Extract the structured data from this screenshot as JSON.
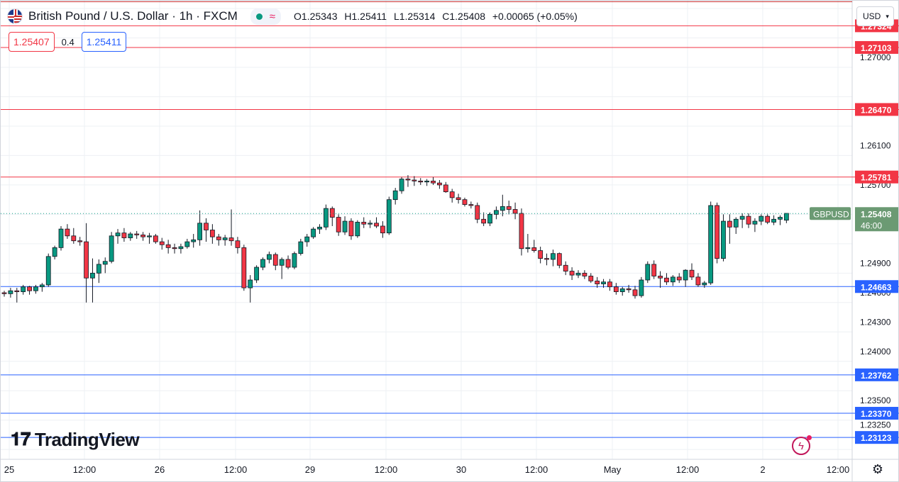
{
  "header": {
    "title": "British Pound / U.S. Dollar · 1h · FXCM",
    "open": "O1.25343",
    "high": "H1.25411",
    "low": "L1.25314",
    "close": "C1.25408",
    "change": "+0.00065 (+0.05%)"
  },
  "trade": {
    "sell": "1.25407",
    "spread": "0.4",
    "buy": "1.25411"
  },
  "currency_button": "USD",
  "branding": "TradingView",
  "icons": [
    "uk-us-flag-icon",
    "status-dot-icon",
    "wave-icon",
    "chevron-down-icon",
    "lightning-icon",
    "settings-gear-icon"
  ],
  "colors": {
    "up": "#089981",
    "down": "#f23645",
    "resistance": "#f23645",
    "support": "#2962ff",
    "last": "#6b9a73"
  },
  "chart_data": {
    "type": "candlestick",
    "title": "British Pound / U.S. Dollar · 1h · FXCM",
    "symbol": "GBPUSD",
    "ylim": [
      1.229,
      1.2758
    ],
    "x_ticks": [
      "25",
      "12:00",
      "26",
      "12:00",
      "29",
      "12:00",
      "30",
      "12:00",
      "May",
      "12:00",
      "2",
      "12:00"
    ],
    "y_ticks": [
      "1.27000",
      "1.26100",
      "1.25700",
      "1.24900",
      "1.24600",
      "1.24300",
      "1.24000",
      "1.23500",
      "1.23250"
    ],
    "resistance_levels": [
      "1.27324",
      "1.27103",
      "1.26470",
      "1.25781"
    ],
    "support_levels": [
      "1.24663",
      "1.23762",
      "1.23370",
      "1.23123"
    ],
    "top_line": 1.2757,
    "last_price": {
      "label": "GBPUSD",
      "value": "1.25408",
      "countdown": "46:00"
    },
    "candles": [
      [
        1.246,
        1.2462,
        1.2456,
        1.2459
      ],
      [
        1.2459,
        1.2465,
        1.2455,
        1.2462
      ],
      [
        1.2462,
        1.2465,
        1.245,
        1.2461
      ],
      [
        1.2461,
        1.2468,
        1.2458,
        1.2466
      ],
      [
        1.2466,
        1.2467,
        1.2458,
        1.2462
      ],
      [
        1.2462,
        1.2468,
        1.2459,
        1.2466
      ],
      [
        1.2466,
        1.247,
        1.2461,
        1.2468
      ],
      [
        1.2468,
        1.25,
        1.2466,
        1.2497
      ],
      [
        1.2497,
        1.2508,
        1.2494,
        1.2506
      ],
      [
        1.2506,
        1.2528,
        1.2503,
        1.2525
      ],
      [
        1.2525,
        1.253,
        1.2515,
        1.2518
      ],
      [
        1.2518,
        1.2526,
        1.251,
        1.2513
      ],
      [
        1.2513,
        1.2517,
        1.2508,
        1.2512
      ],
      [
        1.2512,
        1.2531,
        1.245,
        1.2475
      ],
      [
        1.2475,
        1.2495,
        1.245,
        1.248
      ],
      [
        1.248,
        1.2494,
        1.247,
        1.2489
      ],
      [
        1.2489,
        1.2496,
        1.248,
        1.2492
      ],
      [
        1.2492,
        1.2522,
        1.249,
        1.2518
      ],
      [
        1.2518,
        1.2525,
        1.251,
        1.2521
      ],
      [
        1.2521,
        1.2526,
        1.2512,
        1.2516
      ],
      [
        1.2516,
        1.2522,
        1.2513,
        1.252
      ],
      [
        1.252,
        1.2523,
        1.2515,
        1.2519
      ],
      [
        1.2519,
        1.2522,
        1.2513,
        1.2517
      ],
      [
        1.2517,
        1.2521,
        1.251,
        1.2518
      ],
      [
        1.2518,
        1.252,
        1.251,
        1.2512
      ],
      [
        1.2512,
        1.2516,
        1.2504,
        1.2509
      ],
      [
        1.2509,
        1.2514,
        1.25,
        1.2506
      ],
      [
        1.2506,
        1.251,
        1.25,
        1.2505
      ],
      [
        1.2505,
        1.251,
        1.25,
        1.2507
      ],
      [
        1.2507,
        1.2515,
        1.2505,
        1.2512
      ],
      [
        1.2512,
        1.252,
        1.2506,
        1.2514
      ],
      [
        1.2514,
        1.2544,
        1.2508,
        1.2531
      ],
      [
        1.2531,
        1.2536,
        1.2512,
        1.2524
      ],
      [
        1.2524,
        1.253,
        1.251,
        1.2517
      ],
      [
        1.2517,
        1.252,
        1.2508,
        1.2514
      ],
      [
        1.2514,
        1.2519,
        1.2508,
        1.2516
      ],
      [
        1.2516,
        1.2545,
        1.2508,
        1.2513
      ],
      [
        1.2513,
        1.2517,
        1.25,
        1.2506
      ],
      [
        1.2506,
        1.2509,
        1.2462,
        1.2465
      ],
      [
        1.2465,
        1.2478,
        1.245,
        1.2473
      ],
      [
        1.2473,
        1.2488,
        1.247,
        1.2486
      ],
      [
        1.2486,
        1.2496,
        1.2483,
        1.2494
      ],
      [
        1.2494,
        1.2502,
        1.249,
        1.2499
      ],
      [
        1.2499,
        1.2501,
        1.2483,
        1.2488
      ],
      [
        1.2488,
        1.2496,
        1.2474,
        1.2494
      ],
      [
        1.2494,
        1.2498,
        1.2484,
        1.2486
      ],
      [
        1.2486,
        1.2502,
        1.2484,
        1.25
      ],
      [
        1.25,
        1.2515,
        1.2498,
        1.2512
      ],
      [
        1.2512,
        1.252,
        1.2507,
        1.2517
      ],
      [
        1.2517,
        1.2527,
        1.2515,
        1.2525
      ],
      [
        1.2525,
        1.253,
        1.252,
        1.2527
      ],
      [
        1.2527,
        1.255,
        1.2524,
        1.2546
      ],
      [
        1.2546,
        1.2548,
        1.2528,
        1.2537
      ],
      [
        1.2537,
        1.254,
        1.2518,
        1.2522
      ],
      [
        1.2522,
        1.2538,
        1.2519,
        1.2533
      ],
      [
        1.2533,
        1.2536,
        1.2514,
        1.2518
      ],
      [
        1.2518,
        1.2534,
        1.2516,
        1.2532
      ],
      [
        1.2532,
        1.2537,
        1.2526,
        1.253
      ],
      [
        1.253,
        1.2534,
        1.2526,
        1.2531
      ],
      [
        1.2531,
        1.2537,
        1.2526,
        1.2528
      ],
      [
        1.2528,
        1.2533,
        1.2516,
        1.2521
      ],
      [
        1.2521,
        1.2558,
        1.2519,
        1.2555
      ],
      [
        1.2555,
        1.2567,
        1.255,
        1.2564
      ],
      [
        1.2564,
        1.2578,
        1.2561,
        1.2576
      ],
      [
        1.2576,
        1.258,
        1.2568,
        1.2575
      ],
      [
        1.2575,
        1.2579,
        1.2569,
        1.2574
      ],
      [
        1.2574,
        1.2577,
        1.257,
        1.2573
      ],
      [
        1.2573,
        1.2576,
        1.2569,
        1.2574
      ],
      [
        1.2574,
        1.2578,
        1.257,
        1.2572
      ],
      [
        1.2572,
        1.2575,
        1.2566,
        1.257
      ],
      [
        1.257,
        1.2573,
        1.2562,
        1.2563
      ],
      [
        1.2563,
        1.2566,
        1.2552,
        1.2557
      ],
      [
        1.2557,
        1.2561,
        1.2551,
        1.2555
      ],
      [
        1.2555,
        1.2557,
        1.2548,
        1.255
      ],
      [
        1.255,
        1.2553,
        1.2546,
        1.2549
      ],
      [
        1.2549,
        1.2552,
        1.2531,
        1.2535
      ],
      [
        1.2535,
        1.2542,
        1.2528,
        1.2531
      ],
      [
        1.2531,
        1.2542,
        1.2528,
        1.254
      ],
      [
        1.254,
        1.2548,
        1.2535,
        1.2544
      ],
      [
        1.2544,
        1.256,
        1.2538,
        1.2548
      ],
      [
        1.2548,
        1.2554,
        1.254,
        1.2545
      ],
      [
        1.2545,
        1.2552,
        1.2535,
        1.2541
      ],
      [
        1.2541,
        1.2546,
        1.2498,
        1.2505
      ],
      [
        1.2505,
        1.252,
        1.2501,
        1.2506
      ],
      [
        1.2506,
        1.2514,
        1.2501,
        1.2503
      ],
      [
        1.2503,
        1.2507,
        1.249,
        1.2495
      ],
      [
        1.2495,
        1.25,
        1.2488,
        1.2494
      ],
      [
        1.2494,
        1.2504,
        1.2487,
        1.25
      ],
      [
        1.25,
        1.2501,
        1.2485,
        1.2488
      ],
      [
        1.2488,
        1.2492,
        1.2478,
        1.2482
      ],
      [
        1.2482,
        1.2486,
        1.2473,
        1.2478
      ],
      [
        1.2478,
        1.2483,
        1.2475,
        1.248
      ],
      [
        1.248,
        1.2483,
        1.2474,
        1.2477
      ],
      [
        1.2477,
        1.248,
        1.247,
        1.2472
      ],
      [
        1.2472,
        1.2476,
        1.2465,
        1.2469
      ],
      [
        1.2469,
        1.2474,
        1.2465,
        1.2471
      ],
      [
        1.2471,
        1.2474,
        1.2462,
        1.2466
      ],
      [
        1.2466,
        1.247,
        1.2458,
        1.2461
      ],
      [
        1.2461,
        1.2466,
        1.2457,
        1.2464
      ],
      [
        1.2464,
        1.2468,
        1.246,
        1.2463
      ],
      [
        1.2463,
        1.2467,
        1.2454,
        1.2457
      ],
      [
        1.2457,
        1.2476,
        1.2455,
        1.2473
      ],
      [
        1.2473,
        1.2492,
        1.247,
        1.2489
      ],
      [
        1.2489,
        1.2493,
        1.2474,
        1.2477
      ],
      [
        1.2477,
        1.2482,
        1.2465,
        1.2475
      ],
      [
        1.2475,
        1.248,
        1.2468,
        1.2471
      ],
      [
        1.2471,
        1.2478,
        1.2467,
        1.2476
      ],
      [
        1.2476,
        1.248,
        1.247,
        1.2473
      ],
      [
        1.2473,
        1.2484,
        1.2466,
        1.2483
      ],
      [
        1.2483,
        1.249,
        1.2473,
        1.2476
      ],
      [
        1.2476,
        1.248,
        1.2466,
        1.2468
      ],
      [
        1.2468,
        1.2472,
        1.2465,
        1.247
      ],
      [
        1.247,
        1.2553,
        1.2468,
        1.2549
      ],
      [
        1.2549,
        1.2552,
        1.249,
        1.2495
      ],
      [
        1.2495,
        1.254,
        1.2492,
        1.2533
      ],
      [
        1.2533,
        1.254,
        1.251,
        1.2527
      ],
      [
        1.2527,
        1.2537,
        1.252,
        1.2535
      ],
      [
        1.2535,
        1.2541,
        1.2526,
        1.2538
      ],
      [
        1.2538,
        1.2541,
        1.2526,
        1.253
      ],
      [
        1.253,
        1.2536,
        1.2522,
        1.2533
      ],
      [
        1.2533,
        1.254,
        1.2529,
        1.2538
      ],
      [
        1.2538,
        1.254,
        1.253,
        1.2532
      ],
      [
        1.2532,
        1.2539,
        1.2529,
        1.2535
      ],
      [
        1.2535,
        1.2539,
        1.2529,
        1.2537
      ],
      [
        1.2534,
        1.2541,
        1.2531,
        1.2541
      ]
    ]
  }
}
